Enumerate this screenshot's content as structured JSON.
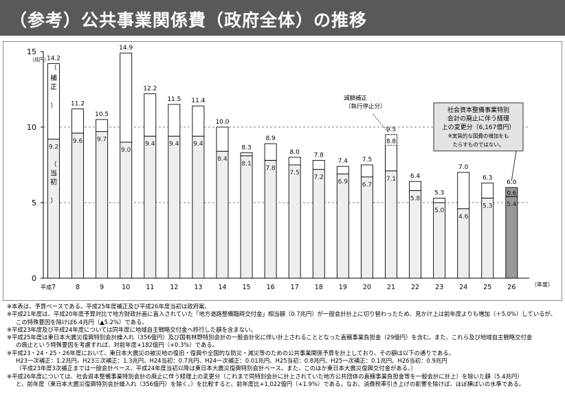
{
  "title": "（参考）公共事業関係費（政府全体）の推移",
  "chart_data": {
    "type": "bar",
    "y_unit": "（兆円）",
    "x_unit": "（年度）",
    "x_prefix": "平成",
    "yticks": [
      0,
      5,
      10,
      15
    ],
    "ylim": [
      0,
      15
    ],
    "categories": [
      "7",
      "8",
      "9",
      "10",
      "11",
      "12",
      "13",
      "14",
      "15",
      "16",
      "17",
      "18",
      "19",
      "20",
      "21",
      "22",
      "23",
      "24",
      "25",
      "26"
    ],
    "series": [
      {
        "name": "当初",
        "values": [
          9.2,
          9.6,
          9.7,
          9.0,
          9.4,
          9.4,
          9.4,
          8.4,
          8.1,
          7.8,
          7.5,
          7.2,
          6.9,
          6.7,
          7.1,
          5.8,
          5.0,
          4.6,
          5.3,
          5.4
        ]
      },
      {
        "name": "補正",
        "values": [
          5.0,
          1.6,
          0.8,
          5.9,
          2.8,
          2.1,
          2.0,
          1.6,
          0.2,
          1.1,
          0.5,
          0.6,
          0.5,
          0.8,
          2.4,
          0.6,
          0.3,
          2.4,
          1.0,
          0.6
        ]
      }
    ],
    "total_labels": [
      "14.2",
      "11.2",
      "10.5",
      "14.9",
      "12.2",
      "11.5",
      "11.4",
      "10.0",
      "8.3",
      "8.9",
      "8.0",
      "7.8",
      "7.4",
      "7.5",
      "9.5",
      "6.4",
      "5.3",
      "7.0",
      "6.3",
      "6.0"
    ],
    "inner_labels": [
      "9.2",
      "9.6",
      "9.7",
      "9.0",
      "9.4",
      "9.4",
      "9.4",
      "8.4",
      "8.1",
      "7.8",
      "7.5",
      "7.2",
      "6.9",
      "6.7",
      "7.1",
      "5.8",
      "5.0",
      "4.6",
      "5.3",
      "5.4"
    ],
    "extra_labels": {
      "21": "8.8",
      "26": "0.6"
    },
    "legend_labels": {
      "supplementary": "補正",
      "initial": "当初"
    },
    "annotations": {
      "cut": [
        "減額補正",
        "（執行停止分）"
      ],
      "box": [
        "社会資本整備事業特別",
        "会計の廃止に伴う経理",
        "上の変更分（6,167億円）",
        "※実質的な国費の増加をも",
        "たらすものではない。"
      ]
    },
    "grid": "dashed at 5 and 10",
    "colors": {
      "initial": "#eeeeee",
      "supplementary": "#ffffff",
      "transfer": "#999999",
      "box": "#e3e3e3",
      "title_bar": "#595959"
    }
  },
  "notes": [
    "※本表は、予算ベースである。平成25年度補正及び平成26年度当初は政府案。",
    "※平成21年度は、平成20年度予算対比で地方財政計画に直入されていた「地方道路整備臨時交付金」相当額（0.7兆円）が一般会計計上に切り替わったため、見かけ上は前年度よりも増加（＋5.0%）しているが、",
    "この特殊要因を除けば6.4兆円（▲5.2%）である。",
    "※平成23年度及び平成24年度については同年度に地域自主戦略交付金へ移行した額を含まない。",
    "※平成25年度は東日本大震災復興特別会計繰入れ（356億円）及び国有林野特別会計の一般会計化に伴い計上されることとなった直轄事業負担金（29億円）を含む。また、これら及び地域自主戦略交付金",
    "の廃止という特殊要因を考慮すれば、対前年度+182億円（+0.3%）である。",
    "※平成23・24・25・26年度において、東日本大震災の被災地の復旧・復興や全国的な防災・減災等のための公共事業関係予算を計上しており、その額は以下の通りである。",
    "H23一次補正：1.2兆円、H23三次補正：1.3兆円、H24当初：0.7兆円、H24一次補正：0.01兆円、H25当初：0.8兆円、H25一次補正：0.1兆円、H26当初：0.9兆円",
    "（平成23年度3次補正までは一般会計ベース、平成24年度当初以降は東日本大震災復興特別会計ベース。また、このほか東日本大震災復興交付金がある。）",
    "※平成26年度については、社会資本整備事業特別会計の廃止に伴う経理上の変更分（これまで同特別会計に計上されていた地方公共団体の直轄事業負担金等を一般会計に計上）を除いた額（5.4兆円）",
    "と、前年度（東日本大震災復興特別会計繰入れ（356億円）を除く。）を比較すると、前年度比+1,022億円（+1.9%）である。なお、消費税率引き上げの影響を除けば、ほぼ横ばいの水準である。"
  ]
}
